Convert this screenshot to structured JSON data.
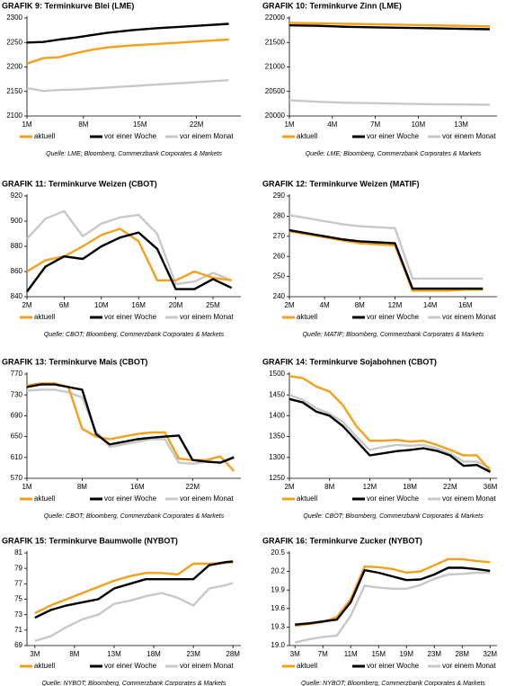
{
  "chart_data": [
    {
      "type": "line",
      "title": "GRAFIK 9: Terminkurve Blei (LME)",
      "source": "Quelle: LME; Bloomberg, Commerzbank Corporates & Markets",
      "x": [
        1,
        3,
        5,
        7,
        9,
        11,
        14,
        17,
        20,
        23,
        26
      ],
      "xlim": [
        1,
        27.5
      ],
      "xticks": [
        {
          "value": 1,
          "label": "1M"
        },
        {
          "value": 8,
          "label": "8M"
        },
        {
          "value": 15,
          "label": "15M"
        },
        {
          "value": 22,
          "label": "22M"
        }
      ],
      "ylim": [
        2100,
        2300
      ],
      "yticks": [
        2100,
        2150,
        2200,
        2250,
        2300
      ],
      "series": [
        {
          "name": "aktuell",
          "color": "#f5a01a",
          "values": [
            2207,
            2218,
            2220,
            2228,
            2235,
            2240,
            2244,
            2247,
            2250,
            2253,
            2256
          ]
        },
        {
          "name": "vor einer Woche",
          "color": "#000000",
          "values": [
            2250,
            2251,
            2256,
            2260,
            2265,
            2270,
            2275,
            2279,
            2282,
            2285,
            2288
          ]
        },
        {
          "name": "vor einem Monat",
          "color": "#c8c8c8",
          "values": [
            2157,
            2151,
            2153,
            2154,
            2156,
            2158,
            2161,
            2164,
            2167,
            2170,
            2173
          ]
        }
      ]
    },
    {
      "type": "line",
      "title": "GRAFIK 10: Terminkurve Zinn (LME)",
      "source": "Quelle: LME; Bloomberg, Commerzbank Corporates & Markets",
      "x": [
        1,
        3,
        5,
        7,
        9,
        11,
        13,
        15
      ],
      "xlim": [
        1,
        15.5
      ],
      "xticks": [
        {
          "value": 1,
          "label": "1M"
        },
        {
          "value": 4,
          "label": "4M"
        },
        {
          "value": 7,
          "label": "7M"
        },
        {
          "value": 10,
          "label": "10M"
        },
        {
          "value": 13,
          "label": "13M"
        }
      ],
      "ylim": [
        20000,
        22000
      ],
      "yticks": [
        20000,
        20500,
        21000,
        21500,
        22000
      ],
      "series": [
        {
          "name": "aktuell",
          "color": "#f5a01a",
          "values": [
            21900,
            21890,
            21880,
            21870,
            21860,
            21850,
            21840,
            21830
          ]
        },
        {
          "name": "vor einer Woche",
          "color": "#000000",
          "values": [
            21850,
            21840,
            21820,
            21810,
            21800,
            21790,
            21780,
            21770
          ]
        },
        {
          "name": "vor einem Monat",
          "color": "#c8c8c8",
          "values": [
            20320,
            20290,
            20270,
            20260,
            20250,
            20240,
            20235,
            20230
          ]
        }
      ]
    },
    {
      "type": "line",
      "title": "GRAFIK 11: Terminkurve Weizen (CBOT)",
      "source": "Quelle: CBOT; Bloomberg, Commerzbank Corporates & Markets",
      "x": [
        0,
        1,
        2,
        3,
        4,
        5,
        6,
        7,
        8,
        9,
        10,
        11
      ],
      "xlim": [
        0,
        11.5
      ],
      "xticks": [
        {
          "value": 0,
          "label": "2M"
        },
        {
          "value": 2,
          "label": "6M"
        },
        {
          "value": 4,
          "label": "10M"
        },
        {
          "value": 6,
          "label": "16M"
        },
        {
          "value": 8,
          "label": "20M"
        },
        {
          "value": 10,
          "label": "25M"
        }
      ],
      "ylim": [
        840,
        920
      ],
      "yticks": [
        840,
        860,
        880,
        900,
        920
      ],
      "series": [
        {
          "name": "aktuell",
          "color": "#f5a01a",
          "values": [
            860,
            869,
            872,
            880,
            889,
            894,
            884,
            853,
            853,
            860,
            855,
            853
          ]
        },
        {
          "name": "vor einer Woche",
          "color": "#000000",
          "values": [
            844,
            864,
            872,
            870,
            880,
            887,
            891,
            878,
            846,
            846,
            854,
            847
          ]
        },
        {
          "name": "vor einem Monat",
          "color": "#c8c8c8",
          "values": [
            886,
            902,
            908,
            888,
            898,
            903,
            905,
            890,
            850,
            852,
            859,
            853
          ]
        }
      ]
    },
    {
      "type": "line",
      "title": "GRAFIK 12: Terminkurve Weizen (MATIF)",
      "source": "Quelle: MATIF; Bloomberg, Commerzbank Corporates & Markets",
      "x": [
        0,
        1,
        2,
        3,
        4,
        5,
        6,
        7,
        8,
        9,
        10,
        11
      ],
      "xlim": [
        0,
        11.8
      ],
      "xticks": [
        {
          "value": 0,
          "label": "2M"
        },
        {
          "value": 2,
          "label": "4M"
        },
        {
          "value": 4,
          "label": "8M"
        },
        {
          "value": 6,
          "label": "12M"
        },
        {
          "value": 8,
          "label": "14M"
        },
        {
          "value": 10,
          "label": "16M"
        }
      ],
      "ylim": [
        240,
        290
      ],
      "yticks": [
        240,
        250,
        260,
        270,
        280,
        290
      ],
      "series": [
        {
          "name": "aktuell",
          "color": "#f5a01a",
          "values": [
            272.5,
            271,
            269.5,
            268,
            266.5,
            266,
            265.5,
            243,
            243,
            243,
            243.5,
            243.5
          ]
        },
        {
          "name": "vor einer Woche",
          "color": "#000000",
          "values": [
            273,
            271.5,
            270,
            268.5,
            267.5,
            267,
            266.5,
            244,
            244,
            244,
            244,
            244
          ]
        },
        {
          "name": "vor einem Monat",
          "color": "#c8c8c8",
          "values": [
            280.5,
            279,
            277.5,
            276,
            275,
            274.5,
            274,
            249,
            249,
            249,
            249,
            249
          ]
        }
      ]
    },
    {
      "type": "line",
      "title": "GRAFIK 13: Terminkurve Mais (CBOT)",
      "source": "Quelle: CBOT; Bloomberg, Commerzbank Corporates & Markets",
      "x": [
        0,
        1,
        2,
        3,
        4,
        5,
        6,
        7,
        8,
        9,
        10,
        11,
        12,
        13,
        14,
        15
      ],
      "xlim": [
        0,
        15.5
      ],
      "xticks": [
        {
          "value": 0,
          "label": "1M"
        },
        {
          "value": 4,
          "label": "8M"
        },
        {
          "value": 8,
          "label": "16M"
        },
        {
          "value": 12,
          "label": "22M"
        }
      ],
      "ylim": [
        570,
        770
      ],
      "yticks": [
        570,
        610,
        650,
        690,
        730,
        770
      ],
      "series": [
        {
          "name": "aktuell",
          "color": "#f5a01a",
          "values": [
            748,
            752,
            752,
            745,
            665,
            650,
            645,
            650,
            655,
            658,
            658,
            608,
            605,
            605,
            612,
            584
          ]
        },
        {
          "name": "vor einer Woche",
          "color": "#000000",
          "values": [
            745,
            750,
            750,
            745,
            740,
            655,
            635,
            640,
            645,
            648,
            650,
            652,
            605,
            602,
            600,
            610
          ]
        },
        {
          "name": "vor einem Monat",
          "color": "#c8c8c8",
          "values": [
            738,
            740,
            740,
            735,
            725,
            660,
            630,
            635,
            640,
            645,
            645,
            600,
            598,
            602,
            600,
            612
          ]
        }
      ]
    },
    {
      "type": "line",
      "title": "GRAFIK 14: Terminkurve Sojabohnen (CBOT)",
      "source": "Quelle: CBOT; Bloomberg, Commerzbank Corporates & Markets",
      "x": [
        0,
        1,
        2,
        3,
        4,
        5,
        6,
        7,
        8,
        9,
        10,
        11,
        12,
        13,
        14,
        15
      ],
      "xlim": [
        0,
        15.5
      ],
      "xticks": [
        {
          "value": 0,
          "label": "2M"
        },
        {
          "value": 3,
          "label": "8M"
        },
        {
          "value": 6,
          "label": "12M"
        },
        {
          "value": 9,
          "label": "18M"
        },
        {
          "value": 12,
          "label": "22M"
        },
        {
          "value": 15,
          "label": "36M"
        }
      ],
      "ylim": [
        1250,
        1500
      ],
      "yticks": [
        1250,
        1300,
        1350,
        1400,
        1450,
        1500
      ],
      "series": [
        {
          "name": "aktuell",
          "color": "#f5a01a",
          "values": [
            1495,
            1490,
            1470,
            1458,
            1425,
            1375,
            1340,
            1340,
            1342,
            1338,
            1340,
            1330,
            1318,
            1305,
            1305,
            1268
          ]
        },
        {
          "name": "vor einer Woche",
          "color": "#000000",
          "values": [
            1440,
            1432,
            1410,
            1400,
            1375,
            1340,
            1305,
            1310,
            1315,
            1318,
            1322,
            1316,
            1305,
            1280,
            1282,
            1265
          ]
        },
        {
          "name": "vor einem Monat",
          "color": "#c8c8c8",
          "values": [
            1450,
            1438,
            1418,
            1405,
            1385,
            1350,
            1318,
            1325,
            1330,
            1328,
            1330,
            1322,
            1310,
            1290,
            1290,
            1275
          ]
        }
      ]
    },
    {
      "type": "line",
      "title": "GRAFIK 15: Terminkurve Baumwolle (NYBOT)",
      "source": "Quelle: NYBOT; Bloomberg, Commerzbank Corporates & Markets",
      "x": [
        3,
        5,
        7,
        9,
        11,
        13,
        15,
        17,
        19,
        21,
        23,
        25,
        27,
        28
      ],
      "xlim": [
        2,
        29
      ],
      "xticks": [
        {
          "value": 3,
          "label": "3M"
        },
        {
          "value": 8,
          "label": "8M"
        },
        {
          "value": 13,
          "label": "13M"
        },
        {
          "value": 18,
          "label": "18M"
        },
        {
          "value": 23,
          "label": "23M"
        },
        {
          "value": 28,
          "label": "28M"
        }
      ],
      "ylim": [
        69,
        81
      ],
      "yticks": [
        69,
        71,
        73,
        75,
        77,
        79,
        81
      ],
      "series": [
        {
          "name": "aktuell",
          "color": "#f5a01a",
          "values": [
            73.2,
            74.2,
            75,
            75.8,
            76.6,
            77.4,
            78,
            78.4,
            78.4,
            78.2,
            79.6,
            79.6,
            79.7,
            79.8
          ]
        },
        {
          "name": "vor einer Woche",
          "color": "#000000",
          "values": [
            72.6,
            73.6,
            74.2,
            74.6,
            75,
            76.4,
            77,
            77.6,
            77.6,
            77.6,
            77.6,
            79.4,
            79.8,
            79.9
          ]
        },
        {
          "name": "vor einem Monat",
          "color": "#c8c8c8",
          "values": [
            69.6,
            70.2,
            71.4,
            72.4,
            73,
            74.4,
            74.8,
            75.4,
            75.8,
            75.2,
            74.2,
            76.4,
            76.8,
            77.1
          ]
        }
      ]
    },
    {
      "type": "line",
      "title": "GRAFIK 16: Terminkurve Zucker (NYBOT)",
      "source": "Quelle: NYBOT; Bloomberg, Commerzbank Corporates & Markets",
      "x": [
        0,
        1,
        2,
        3,
        4,
        5,
        6,
        7,
        8,
        9,
        10,
        11,
        12,
        13,
        14
      ],
      "xlim": [
        -0.4,
        14.5
      ],
      "xticks": [
        {
          "value": 0,
          "label": "3M"
        },
        {
          "value": 2,
          "label": "7M"
        },
        {
          "value": 4,
          "label": "11M"
        },
        {
          "value": 6,
          "label": "15M"
        },
        {
          "value": 8,
          "label": "19M"
        },
        {
          "value": 10,
          "label": "23M"
        },
        {
          "value": 12,
          "label": "28M"
        },
        {
          "value": 14,
          "label": "32M"
        }
      ],
      "ylim": [
        19,
        20.5
      ],
      "yticks": [
        {
          "value": 19,
          "label": "19.0"
        },
        19.3,
        19.6,
        19.9,
        20.2,
        20.5
      ],
      "series": [
        {
          "name": "aktuell",
          "color": "#f5a01a",
          "values": [
            19.32,
            19.35,
            19.38,
            19.46,
            19.75,
            20.28,
            20.27,
            20.24,
            20.18,
            20.2,
            20.3,
            20.4,
            20.4,
            20.37,
            20.35
          ]
        },
        {
          "name": "vor einer Woche",
          "color": "#000000",
          "values": [
            19.34,
            19.36,
            19.39,
            19.42,
            19.7,
            20.22,
            20.18,
            20.12,
            20.06,
            20.07,
            20.15,
            20.26,
            20.26,
            20.24,
            20.21
          ]
        },
        {
          "name": "vor einem Monat",
          "color": "#c8c8c8",
          "values": [
            19.05,
            19.1,
            19.14,
            19.16,
            19.48,
            19.97,
            19.94,
            19.92,
            19.92,
            19.98,
            20.08,
            20.15,
            20.16,
            20.18,
            20.18
          ]
        }
      ]
    }
  ]
}
